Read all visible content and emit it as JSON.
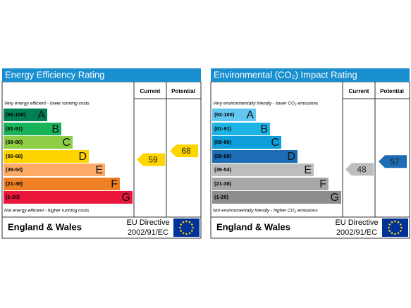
{
  "panels": [
    {
      "title": "Energy Efficiency Rating",
      "current_label": "Current",
      "potential_label": "Potential",
      "top_note": "Very energy efficient - lower running costs",
      "bottom_note": "Not energy efficient - higher running costs",
      "bands": [
        {
          "range": "(92-100)",
          "letter": "A",
          "color": "#008054"
        },
        {
          "range": "(81-91)",
          "letter": "B",
          "color": "#19b459"
        },
        {
          "range": "(69-80)",
          "letter": "C",
          "color": "#8dce46"
        },
        {
          "range": "(55-68)",
          "letter": "D",
          "color": "#ffd500"
        },
        {
          "range": "(39-54)",
          "letter": "E",
          "color": "#fcaa65"
        },
        {
          "range": "(21-38)",
          "letter": "F",
          "color": "#ef8023"
        },
        {
          "range": "(1-20)",
          "letter": "G",
          "color": "#e9153b"
        }
      ],
      "current": 59,
      "potential": 68,
      "region": "England & Wales",
      "directive": "EU Directive",
      "directive_code": "2002/91/EC"
    },
    {
      "title": "Environmental (CO₂) Impact Rating",
      "current_label": "Current",
      "potential_label": "Potential",
      "top_note": "Very environmentally friendly - lower CO₂ emissions",
      "bottom_note": "Not environmentally friendly - higher CO₂ emissions",
      "bands": [
        {
          "range": "(92-100)",
          "letter": "A",
          "color": "#63c7f2"
        },
        {
          "range": "(81-91)",
          "letter": "B",
          "color": "#1eb4e6"
        },
        {
          "range": "(69-80)",
          "letter": "C",
          "color": "#0d9edb"
        },
        {
          "range": "(55-68)",
          "letter": "D",
          "color": "#1c6cb6"
        },
        {
          "range": "(39-54)",
          "letter": "E",
          "color": "#bbbdbf"
        },
        {
          "range": "(21-38)",
          "letter": "F",
          "color": "#a5a7a9"
        },
        {
          "range": "(1-20)",
          "letter": "G",
          "color": "#8b8d8f"
        }
      ],
      "current": 48,
      "potential": 57,
      "region": "England & Wales",
      "directive": "EU Directive",
      "directive_code": "2002/91/EC"
    }
  ]
}
